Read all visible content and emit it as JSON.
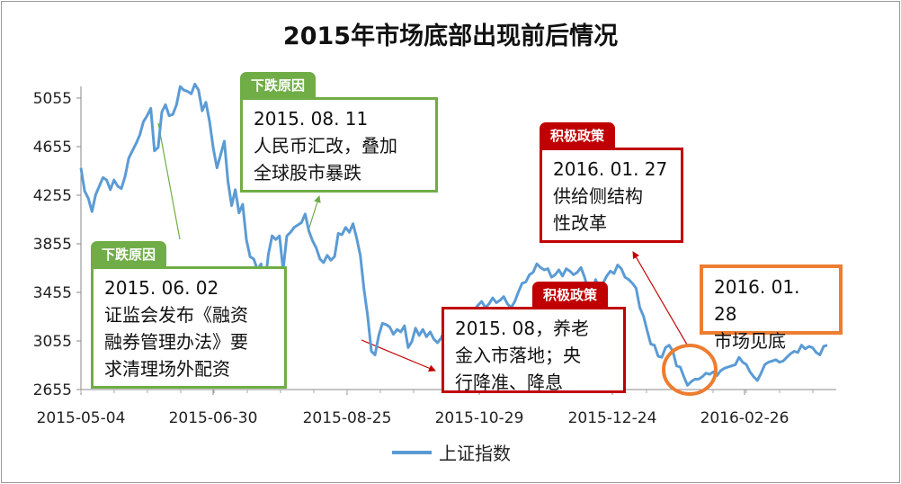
{
  "chart_data": {
    "type": "line",
    "title": "2015年市场底部出现前后情况",
    "xlabel": "",
    "ylabel": "",
    "x_tick_labels": [
      "2015-05-04",
      "2015-06-30",
      "2015-08-25",
      "2015-10-29",
      "2015-12-24",
      "2016-02-26"
    ],
    "y_ticks": [
      2655,
      3055,
      3455,
      3855,
      4255,
      4655,
      5055
    ],
    "ylim": [
      2655,
      5255
    ],
    "legend_position": "bottom",
    "series": [
      {
        "name": "上证指数",
        "color": "#5b9bd5",
        "values": [
          4480,
          4290,
          4230,
          4120,
          4260,
          4330,
          4400,
          4380,
          4300,
          4380,
          4330,
          4310,
          4410,
          4560,
          4620,
          4680,
          4750,
          4860,
          4910,
          4970,
          4620,
          4650,
          4940,
          5000,
          4910,
          4920,
          5000,
          5150,
          5120,
          5110,
          5090,
          5170,
          5120,
          4950,
          5020,
          4860,
          4640,
          4480,
          4590,
          4700,
          4370,
          4170,
          4300,
          4110,
          4180,
          3890,
          3750,
          3730,
          3640,
          3690,
          3510,
          3770,
          3920,
          3890,
          3920,
          3640,
          3920,
          3950,
          3990,
          4010,
          4030,
          4100,
          3960,
          3880,
          3820,
          3730,
          3700,
          3760,
          3720,
          3750,
          3940,
          3930,
          3990,
          3950,
          4020,
          3900,
          3760,
          3480,
          3260,
          2970,
          2940,
          3100,
          3200,
          3190,
          3170,
          3110,
          3150,
          3130,
          3180,
          3000,
          3050,
          3160,
          3100,
          3150,
          3090,
          3130,
          3070,
          3040,
          3080,
          3150,
          3050,
          3150,
          3120,
          3090,
          3080,
          3180,
          3290,
          3310,
          3350,
          3380,
          3330,
          3360,
          3410,
          3370,
          3390,
          3420,
          3360,
          3330,
          3380,
          3460,
          3530,
          3540,
          3600,
          3620,
          3690,
          3660,
          3640,
          3650,
          3580,
          3600,
          3640,
          3590,
          3650,
          3630,
          3600,
          3620,
          3660,
          3580,
          3470,
          3460,
          3560,
          3480,
          3530,
          3590,
          3630,
          3610,
          3680,
          3650,
          3580,
          3560,
          3530,
          3490,
          3330,
          3260,
          3140,
          3030,
          3020,
          2930,
          2920,
          3000,
          3020,
          2970,
          2850,
          2840,
          2760,
          2690,
          2720,
          2740,
          2740,
          2760,
          2790,
          2780,
          2800,
          2770,
          2810,
          2830,
          2840,
          2850,
          2860,
          2920,
          2880,
          2860,
          2800,
          2760,
          2730,
          2790,
          2860,
          2880,
          2890,
          2900,
          2880,
          2890,
          2920,
          2950,
          2970,
          2960,
          3020,
          2990,
          3010,
          3000,
          2960,
          2940,
          3010,
          3020
        ]
      }
    ]
  },
  "annotations": [
    {
      "tag": "下跌原因",
      "text": "2015. 08. 11\n人民币汇改，叠加\n全球股市暴跌"
    },
    {
      "tag": "下跌原因",
      "text": "2015. 06. 02\n证监会发布《融资\n融券管理办法》要\n求清理场外配资"
    },
    {
      "tag": "积极政策",
      "text": "2015. 08，养老\n金入市落地；央\n行降准、降息"
    },
    {
      "tag": "积极政策",
      "text": "2016. 01. 27\n供给侧结构\n性改革"
    },
    {
      "tag": "",
      "text": "2016. 01. 28\n市场见底"
    }
  ],
  "colors": {
    "series": "#5b9bd5",
    "green": "#70ad47",
    "red": "#c00000",
    "orange": "#ed7d31"
  }
}
